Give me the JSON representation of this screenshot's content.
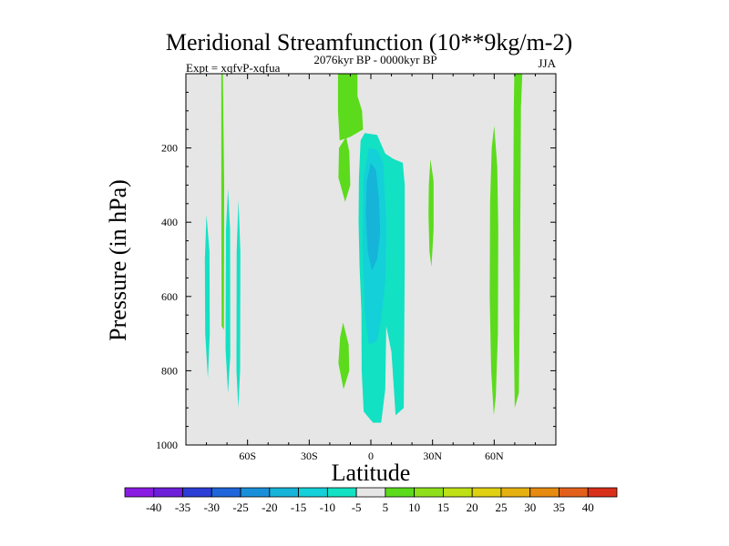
{
  "chart_data": {
    "type": "heatmap",
    "title": "Meridional Streamfunction (10**9kg/m-2)",
    "subtitle": "2076kyr BP - 0000kyr BP",
    "left_label": "Expt = xqfvP-xqfua",
    "right_label": "JJA",
    "xlabel": "Latitude",
    "ylabel": "Pressure (in hPa)",
    "xlim": [
      -90,
      90
    ],
    "ylim": [
      1000,
      0
    ],
    "x_ticks": [
      {
        "value": -60,
        "label": "60S"
      },
      {
        "value": -30,
        "label": "30S"
      },
      {
        "value": 0,
        "label": "0"
      },
      {
        "value": 30,
        "label": "30N"
      },
      {
        "value": 60,
        "label": "60N"
      }
    ],
    "y_ticks": [
      {
        "value": 200,
        "label": "200"
      },
      {
        "value": 400,
        "label": "400"
      },
      {
        "value": 600,
        "label": "600"
      },
      {
        "value": 800,
        "label": "800"
      },
      {
        "value": 1000,
        "label": "1000"
      }
    ],
    "background_color": "#e6e6e6",
    "colorbar": {
      "levels": [
        "-40",
        "-35",
        "-30",
        "-25",
        "-20",
        "-15",
        "-10",
        "-5",
        "5",
        "10",
        "15",
        "20",
        "25",
        "30",
        "35",
        "40"
      ],
      "colors": [
        "#8a1be3",
        "#6d1fd9",
        "#2c3ed6",
        "#1f66da",
        "#1a8fd9",
        "#15b4d8",
        "#14d0d8",
        "#13e1c3",
        "#e6e6e6",
        "#5cdb1c",
        "#8fe01a",
        "#bfe015",
        "#e0d012",
        "#e6b010",
        "#e68a10",
        "#e3601a",
        "#d9301a"
      ]
    },
    "regions": [
      {
        "name": "anomaly-positive-5-s70",
        "level": "5",
        "color": "#5cdb1c",
        "points": [
          [
            -72.8,
            0
          ],
          [
            -72.0,
            0
          ],
          [
            -71.4,
            300
          ],
          [
            -71.5,
            690
          ],
          [
            -72.6,
            680
          ],
          [
            -72.8,
            300
          ]
        ]
      },
      {
        "name": "anomaly-negative-5-s80",
        "level": "-5",
        "color": "#13e1c3",
        "points": [
          [
            -80.0,
            380
          ],
          [
            -78.5,
            480
          ],
          [
            -78.4,
            700
          ],
          [
            -79.3,
            820
          ],
          [
            -80.6,
            700
          ],
          [
            -80.8,
            500
          ]
        ]
      },
      {
        "name": "anomaly-negative-5-s69",
        "level": "-5",
        "color": "#13e1c3",
        "points": [
          [
            -69.5,
            310
          ],
          [
            -68.5,
            420
          ],
          [
            -68.4,
            760
          ],
          [
            -69.5,
            860
          ],
          [
            -70.7,
            740
          ],
          [
            -70.5,
            420
          ]
        ]
      },
      {
        "name": "anomaly-negative-5-s64",
        "level": "-5",
        "color": "#13e1c3",
        "points": [
          [
            -64.4,
            340
          ],
          [
            -63.5,
            480
          ],
          [
            -63.6,
            800
          ],
          [
            -64.5,
            900
          ],
          [
            -65.4,
            800
          ],
          [
            -65.3,
            480
          ]
        ]
      },
      {
        "name": "anomaly-positive-5-s14-upper",
        "level": "5",
        "color": "#5cdb1c",
        "points": [
          [
            -16.0,
            0
          ],
          [
            -6.5,
            0
          ],
          [
            -6.5,
            60
          ],
          [
            -4.3,
            100
          ],
          [
            -3.8,
            150
          ],
          [
            -10.0,
            170
          ],
          [
            -15.2,
            180
          ],
          [
            -16.0,
            100
          ]
        ]
      },
      {
        "name": "anomaly-positive-5-s14-mid",
        "level": "5",
        "color": "#5cdb1c",
        "points": [
          [
            -12.0,
            170
          ],
          [
            -10.5,
            210
          ],
          [
            -10.0,
            300
          ],
          [
            -12.5,
            345
          ],
          [
            -15.8,
            280
          ],
          [
            -15.5,
            200
          ]
        ]
      },
      {
        "name": "anomaly-positive-5-s14-lower",
        "level": "5",
        "color": "#5cdb1c",
        "points": [
          [
            -13.5,
            670
          ],
          [
            -10.8,
            730
          ],
          [
            -10.5,
            800
          ],
          [
            -13.3,
            850
          ],
          [
            -15.8,
            780
          ],
          [
            -15.0,
            710
          ]
        ]
      },
      {
        "name": "anomaly-negative-5-main",
        "level": "-5",
        "color": "#13e1c3",
        "points": [
          [
            -5.0,
            180
          ],
          [
            -3.0,
            160
          ],
          [
            3.0,
            165
          ],
          [
            7.0,
            215
          ],
          [
            11.0,
            230
          ],
          [
            15.5,
            240
          ],
          [
            16.5,
            300
          ],
          [
            16.5,
            500
          ],
          [
            16.0,
            900
          ],
          [
            12.0,
            920
          ],
          [
            10.0,
            750
          ],
          [
            7.5,
            680
          ],
          [
            7.0,
            850
          ],
          [
            5.0,
            940
          ],
          [
            1.0,
            940
          ],
          [
            -3.5,
            910
          ],
          [
            -4.5,
            800
          ],
          [
            -4.6,
            640
          ],
          [
            -5.5,
            520
          ],
          [
            -6.0,
            400
          ],
          [
            -5.8,
            280
          ]
        ]
      },
      {
        "name": "anomaly-negative-10-core",
        "level": "-10",
        "color": "#14d0d8",
        "points": [
          [
            -1.0,
            200
          ],
          [
            3.0,
            205
          ],
          [
            6.0,
            240
          ],
          [
            7.5,
            400
          ],
          [
            7.0,
            560
          ],
          [
            5.0,
            660
          ],
          [
            3.0,
            720
          ],
          [
            -1.0,
            730
          ],
          [
            -3.0,
            640
          ],
          [
            -4.0,
            450
          ],
          [
            -3.5,
            280
          ]
        ]
      },
      {
        "name": "anomaly-negative-15-core",
        "level": "-15",
        "color": "#15b4d8",
        "points": [
          [
            0.0,
            240
          ],
          [
            2.5,
            260
          ],
          [
            4.0,
            340
          ],
          [
            4.5,
            430
          ],
          [
            3.0,
            500
          ],
          [
            0.5,
            530
          ],
          [
            -1.5,
            480
          ],
          [
            -2.5,
            380
          ],
          [
            -2.0,
            290
          ]
        ]
      },
      {
        "name": "anomaly-positive-5-n30",
        "level": "5",
        "color": "#5cdb1c",
        "points": [
          [
            29.0,
            230
          ],
          [
            30.5,
            290
          ],
          [
            30.5,
            420
          ],
          [
            29.5,
            520
          ],
          [
            28.5,
            480
          ],
          [
            28.0,
            380
          ],
          [
            28.2,
            300
          ]
        ]
      },
      {
        "name": "anomaly-positive-5-n60",
        "level": "5",
        "color": "#5cdb1c",
        "points": [
          [
            60.0,
            140
          ],
          [
            61.5,
            250
          ],
          [
            62.0,
            420
          ],
          [
            61.8,
            700
          ],
          [
            60.8,
            870
          ],
          [
            59.8,
            920
          ],
          [
            58.5,
            800
          ],
          [
            57.8,
            600
          ],
          [
            58.0,
            350
          ],
          [
            58.8,
            200
          ]
        ]
      },
      {
        "name": "anomaly-positive-5-n70",
        "level": "5",
        "color": "#5cdb1c",
        "points": [
          [
            69.8,
            0
          ],
          [
            73.7,
            0
          ],
          [
            73.0,
            90
          ],
          [
            72.8,
            300
          ],
          [
            72.5,
            600
          ],
          [
            72.0,
            860
          ],
          [
            70.0,
            900
          ],
          [
            69.5,
            700
          ],
          [
            69.2,
            400
          ],
          [
            69.5,
            100
          ]
        ]
      }
    ]
  }
}
